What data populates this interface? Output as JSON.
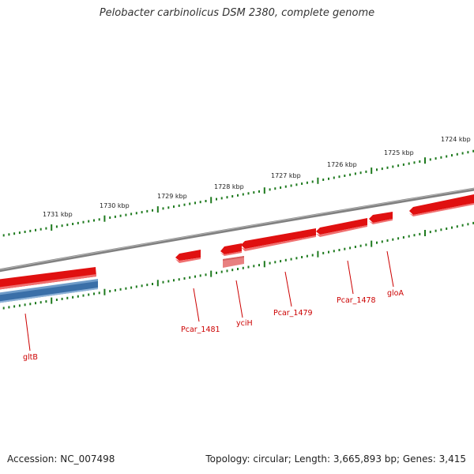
{
  "title": "Pelobacter carbinolicus DSM 2380, complete genome",
  "footer": {
    "accession": "Accession: NC_007498",
    "stats": "Topology: circular; Length: 3,665,893 bp; Genes: 3,415"
  },
  "colors": {
    "forward_gene": "#e01010",
    "reverse_gene": "#3a6fa8",
    "rna_gene": "#e88080",
    "backbone": "#808080",
    "ticks": "#1e7a1e",
    "labels": "#cc0000"
  },
  "scale_labels": [
    "1724 kbp",
    "1725 kbp",
    "1726 kbp",
    "1727 kbp",
    "1728 kbp",
    "1729 kbp",
    "1730 kbp",
    "1731 kbp"
  ],
  "genes": [
    {
      "name": "gltB"
    },
    {
      "name": "Pcar_1481"
    },
    {
      "name": "yciH"
    },
    {
      "name": "Pcar_1479"
    },
    {
      "name": "Pcar_1478"
    },
    {
      "name": "gloA"
    }
  ]
}
